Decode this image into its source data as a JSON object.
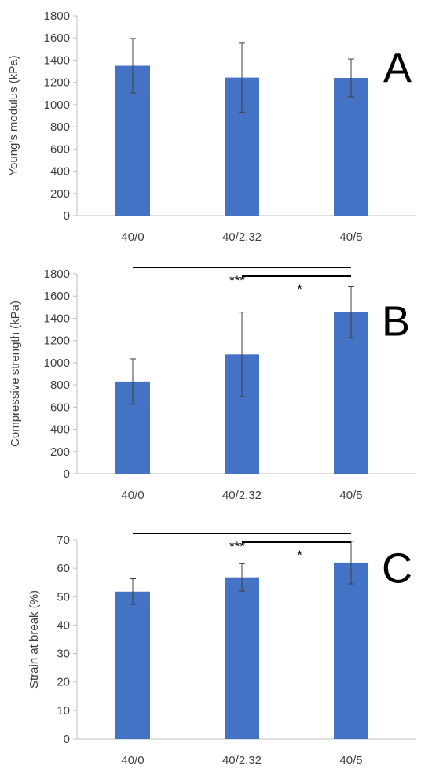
{
  "chart_data": [
    {
      "panel": "A",
      "type": "bar",
      "categories": [
        "40/0",
        "40/2.32",
        "40/5"
      ],
      "values": [
        1350,
        1243,
        1240
      ],
      "error": [
        245,
        310,
        170
      ],
      "ylabel": "Young's modulus (kPa)",
      "ylim": [
        0,
        1800
      ],
      "yticks": [
        0,
        200,
        400,
        600,
        800,
        1000,
        1200,
        1400,
        1600,
        1800
      ],
      "significance": [],
      "color": "#4472C4"
    },
    {
      "panel": "B",
      "type": "bar",
      "categories": [
        "40/0",
        "40/2.32",
        "40/5"
      ],
      "values": [
        830,
        1075,
        1455
      ],
      "error": [
        205,
        380,
        228
      ],
      "ylabel": "Compressive strength (kPa)",
      "ylim": [
        0,
        1800
      ],
      "yticks": [
        0,
        200,
        400,
        600,
        800,
        1000,
        1200,
        1400,
        1600,
        1800
      ],
      "significance": [
        {
          "from": 0,
          "to": 2,
          "label": "***"
        },
        {
          "from": 1,
          "to": 2,
          "label": "*"
        }
      ],
      "color": "#4472C4"
    },
    {
      "panel": "C",
      "type": "bar",
      "categories": [
        "40/0",
        "40/2.32",
        "40/5"
      ],
      "values": [
        51.8,
        56.8,
        62.0
      ],
      "error": [
        4.5,
        4.8,
        7.5
      ],
      "ylabel": "Strain at break (%)",
      "ylim": [
        0,
        70
      ],
      "yticks": [
        0,
        10,
        20,
        30,
        40,
        50,
        60,
        70
      ],
      "significance": [
        {
          "from": 0,
          "to": 2,
          "label": "***"
        },
        {
          "from": 1,
          "to": 2,
          "label": "*"
        }
      ],
      "color": "#4472C4"
    }
  ]
}
